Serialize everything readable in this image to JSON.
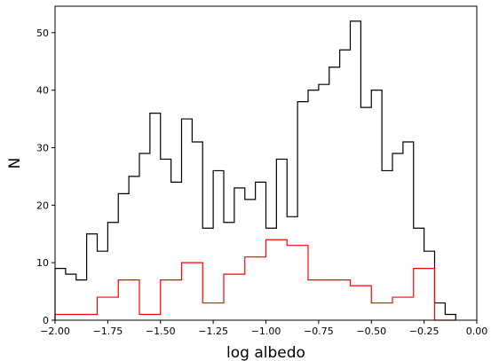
{
  "chart_data": {
    "type": "histogram",
    "title": "",
    "xlabel": "log albedo",
    "ylabel": "N",
    "xlim": [
      -2.0,
      0.0
    ],
    "ylim": [
      0,
      54.6
    ],
    "xticks": [
      -2.0,
      -1.75,
      -1.5,
      -1.25,
      -1.0,
      -0.75,
      -0.5,
      -0.25,
      0.0
    ],
    "xtick_labels": [
      "−2.00",
      "−1.75",
      "−1.50",
      "−1.25",
      "−1.00",
      "−0.75",
      "−0.50",
      "−0.25",
      "0.00"
    ],
    "yticks": [
      0,
      10,
      20,
      30,
      40,
      50
    ],
    "ytick_labels": [
      "0",
      "10",
      "20",
      "30",
      "40",
      "50"
    ],
    "grid": false,
    "series": [
      {
        "color": "#000000",
        "bins": {
          "start": -2.0,
          "width": 0.05
        },
        "values": [
          9,
          8,
          7,
          15,
          12,
          17,
          22,
          25,
          29,
          36,
          28,
          24,
          35,
          31,
          16,
          26,
          17,
          23,
          21,
          24,
          16,
          28,
          18,
          38,
          40,
          41,
          44,
          47,
          52,
          37,
          40,
          26,
          29,
          31,
          16,
          12,
          3,
          1
        ]
      },
      {
        "color": "#ff0000",
        "bins": {
          "start": -2.0,
          "width": 0.1
        },
        "values": [
          1,
          1,
          4,
          7,
          1,
          7,
          10,
          3,
          8,
          11,
          14,
          13,
          7,
          7,
          6,
          3,
          4,
          9,
          0
        ]
      }
    ]
  }
}
